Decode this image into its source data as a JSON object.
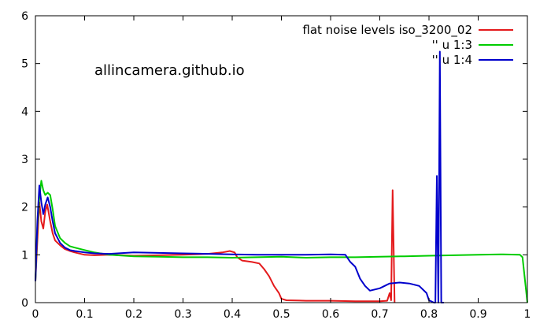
{
  "chart_data": {
    "type": "line",
    "title": "",
    "xlabel": "",
    "ylabel": "",
    "xlim": [
      0,
      1
    ],
    "ylim": [
      0,
      6
    ],
    "xticks": [
      "0",
      "0.1",
      "0.2",
      "0.3",
      "0.4",
      "0.5",
      "0.6",
      "0.7",
      "0.8",
      "0.9",
      "1"
    ],
    "yticks": [
      "0",
      "1",
      "2",
      "3",
      "4",
      "5",
      "6"
    ],
    "grid": false,
    "legend_position": "top-right",
    "annotation": "allincamera.github.io",
    "series": [
      {
        "name": "flat noise levels iso_3200_02",
        "color": "#e41a1c",
        "points": [
          [
            0.0,
            0.45
          ],
          [
            0.004,
            1.3
          ],
          [
            0.008,
            2.1
          ],
          [
            0.012,
            1.7
          ],
          [
            0.016,
            1.55
          ],
          [
            0.02,
            1.9
          ],
          [
            0.024,
            2.05
          ],
          [
            0.03,
            1.7
          ],
          [
            0.035,
            1.45
          ],
          [
            0.04,
            1.3
          ],
          [
            0.05,
            1.2
          ],
          [
            0.06,
            1.12
          ],
          [
            0.07,
            1.08
          ],
          [
            0.08,
            1.05
          ],
          [
            0.1,
            1.0
          ],
          [
            0.12,
            0.99
          ],
          [
            0.15,
            1.0
          ],
          [
            0.2,
            0.98
          ],
          [
            0.25,
            0.99
          ],
          [
            0.3,
            1.0
          ],
          [
            0.35,
            1.02
          ],
          [
            0.38,
            1.05
          ],
          [
            0.395,
            1.08
          ],
          [
            0.405,
            1.05
          ],
          [
            0.41,
            0.95
          ],
          [
            0.42,
            0.88
          ],
          [
            0.44,
            0.85
          ],
          [
            0.455,
            0.82
          ],
          [
            0.465,
            0.7
          ],
          [
            0.475,
            0.55
          ],
          [
            0.485,
            0.35
          ],
          [
            0.495,
            0.2
          ],
          [
            0.5,
            0.08
          ],
          [
            0.51,
            0.05
          ],
          [
            0.55,
            0.04
          ],
          [
            0.6,
            0.04
          ],
          [
            0.65,
            0.03
          ],
          [
            0.7,
            0.03
          ],
          [
            0.715,
            0.04
          ],
          [
            0.72,
            0.2
          ],
          [
            0.723,
            0.05
          ],
          [
            0.726,
            2.35
          ],
          [
            0.73,
            0.0
          ]
        ]
      },
      {
        "name": "'' u 1:3",
        "color": "#00cc00",
        "points": [
          [
            0.0,
            0.45
          ],
          [
            0.004,
            1.6
          ],
          [
            0.008,
            2.2
          ],
          [
            0.012,
            2.55
          ],
          [
            0.016,
            2.35
          ],
          [
            0.02,
            2.25
          ],
          [
            0.025,
            2.3
          ],
          [
            0.03,
            2.25
          ],
          [
            0.035,
            1.95
          ],
          [
            0.04,
            1.6
          ],
          [
            0.05,
            1.35
          ],
          [
            0.06,
            1.25
          ],
          [
            0.07,
            1.18
          ],
          [
            0.08,
            1.15
          ],
          [
            0.1,
            1.1
          ],
          [
            0.12,
            1.05
          ],
          [
            0.15,
            1.0
          ],
          [
            0.2,
            0.97
          ],
          [
            0.25,
            0.96
          ],
          [
            0.3,
            0.95
          ],
          [
            0.35,
            0.95
          ],
          [
            0.4,
            0.94
          ],
          [
            0.45,
            0.95
          ],
          [
            0.5,
            0.96
          ],
          [
            0.55,
            0.94
          ],
          [
            0.6,
            0.95
          ],
          [
            0.65,
            0.95
          ],
          [
            0.7,
            0.96
          ],
          [
            0.75,
            0.97
          ],
          [
            0.8,
            0.98
          ],
          [
            0.85,
            0.99
          ],
          [
            0.9,
            1.0
          ],
          [
            0.95,
            1.01
          ],
          [
            0.985,
            1.0
          ],
          [
            0.99,
            0.95
          ],
          [
            1.0,
            0.0
          ]
        ]
      },
      {
        "name": "'' u 1:4",
        "color": "#0000cc",
        "points": [
          [
            0.0,
            0.45
          ],
          [
            0.004,
            1.7
          ],
          [
            0.008,
            2.45
          ],
          [
            0.012,
            2.1
          ],
          [
            0.016,
            1.85
          ],
          [
            0.02,
            2.05
          ],
          [
            0.025,
            2.2
          ],
          [
            0.03,
            2.0
          ],
          [
            0.035,
            1.7
          ],
          [
            0.04,
            1.45
          ],
          [
            0.05,
            1.25
          ],
          [
            0.06,
            1.15
          ],
          [
            0.07,
            1.1
          ],
          [
            0.08,
            1.08
          ],
          [
            0.1,
            1.05
          ],
          [
            0.12,
            1.03
          ],
          [
            0.15,
            1.02
          ],
          [
            0.2,
            1.05
          ],
          [
            0.25,
            1.04
          ],
          [
            0.3,
            1.03
          ],
          [
            0.35,
            1.02
          ],
          [
            0.4,
            1.01
          ],
          [
            0.45,
            1.0
          ],
          [
            0.5,
            1.0
          ],
          [
            0.55,
            1.0
          ],
          [
            0.6,
            1.01
          ],
          [
            0.63,
            1.0
          ],
          [
            0.64,
            0.85
          ],
          [
            0.65,
            0.75
          ],
          [
            0.66,
            0.5
          ],
          [
            0.67,
            0.35
          ],
          [
            0.68,
            0.25
          ],
          [
            0.7,
            0.3
          ],
          [
            0.72,
            0.4
          ],
          [
            0.74,
            0.42
          ],
          [
            0.76,
            0.4
          ],
          [
            0.78,
            0.35
          ],
          [
            0.795,
            0.2
          ],
          [
            0.8,
            0.05
          ],
          [
            0.81,
            0.0
          ],
          [
            0.813,
            0.0
          ],
          [
            0.816,
            2.65
          ],
          [
            0.819,
            0.0
          ],
          [
            0.822,
            5.25
          ],
          [
            0.825,
            0.0
          ],
          [
            0.83,
            0.0
          ]
        ]
      }
    ]
  }
}
